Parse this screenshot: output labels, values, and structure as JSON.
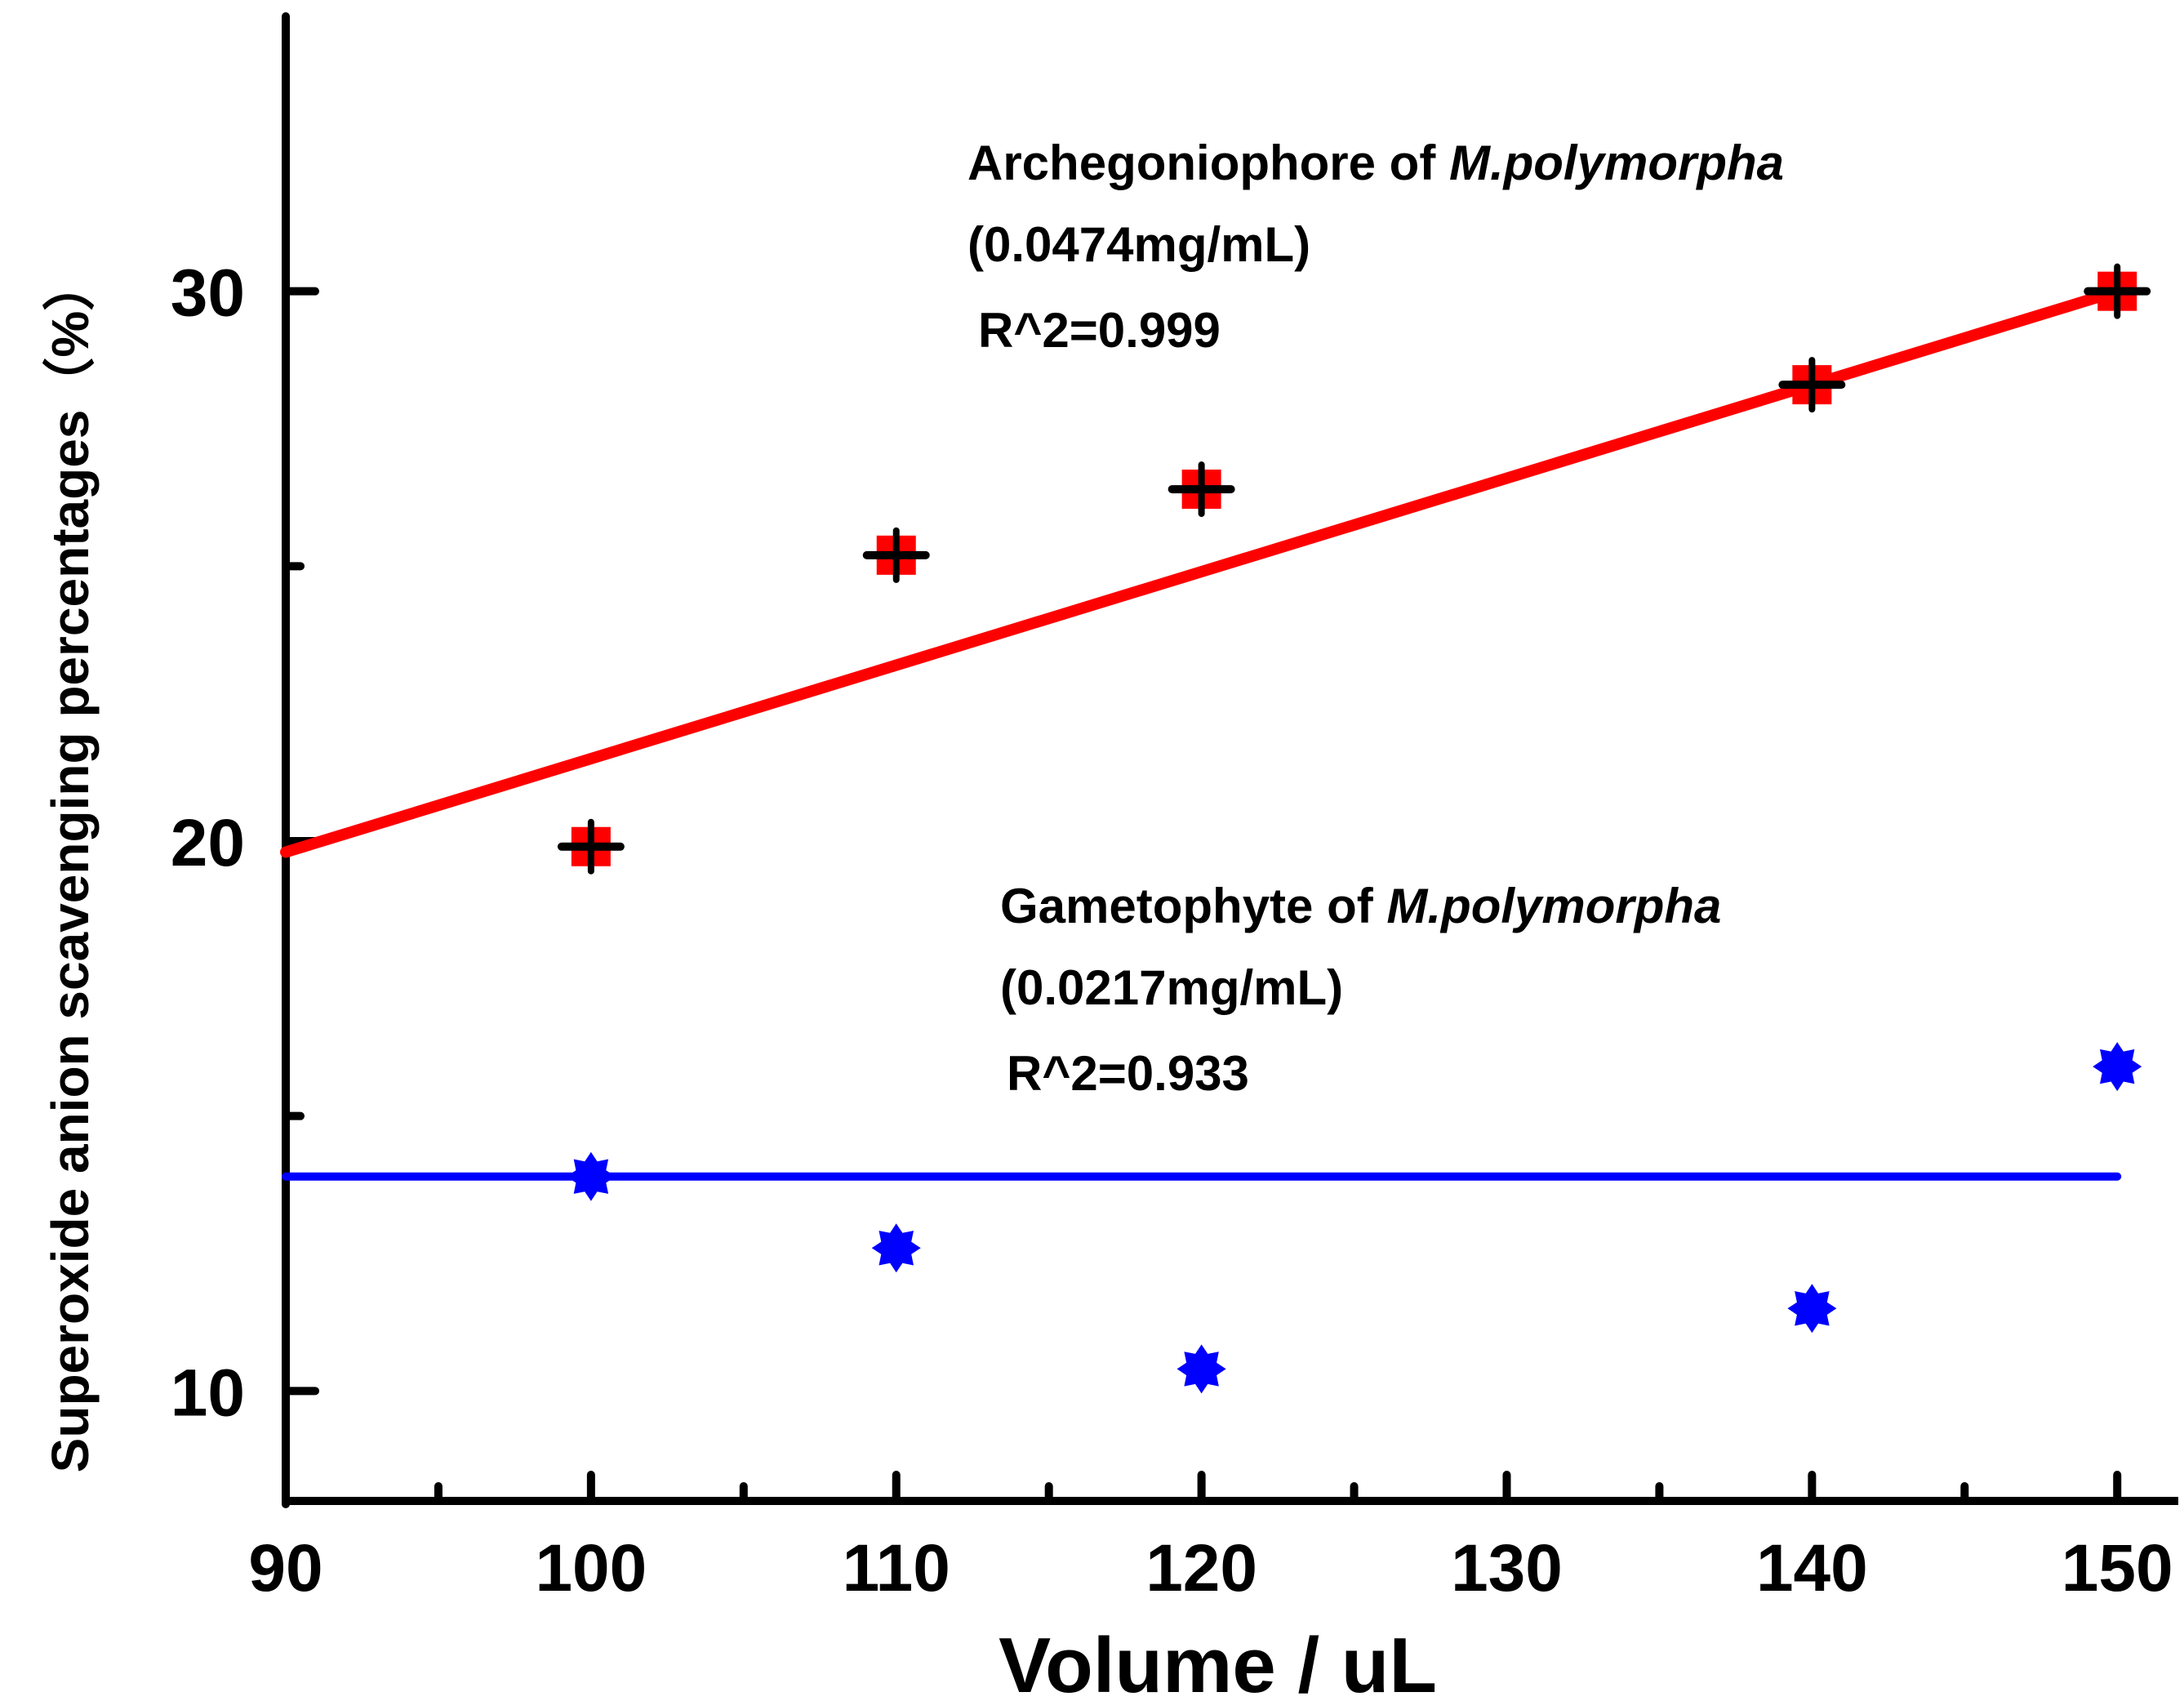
{
  "chart_data": {
    "type": "scatter",
    "title": "",
    "xlabel": "Volume / uL",
    "ylabel": "Superoxide anion scavenging percentages（%）",
    "xlim": [
      90,
      152
    ],
    "ylim": [
      8,
      35
    ],
    "xticks": [
      "90",
      "100",
      "110",
      "120",
      "130",
      "140",
      "150"
    ],
    "yticks": [
      "10",
      "20",
      "30"
    ],
    "series": [
      {
        "name": "Archegoniophore of M.polymorpha",
        "marker": "square-with-cross",
        "color": "#ff0000",
        "x": [
          100,
          110,
          120,
          140,
          150
        ],
        "values": [
          19.9,
          25.2,
          26.4,
          28.3,
          30.0
        ],
        "fit": {
          "x": [
            90,
            150
          ],
          "y": [
            19.8,
            30.0
          ]
        },
        "annotation": {
          "line1_prefix": "Archegoniophore of ",
          "line1_species": "M.polymorpha",
          "line2": "(0.0474mg/mL)",
          "line3": "R^2=0.999"
        }
      },
      {
        "name": "Gametophyte of M.polymorpha",
        "marker": "star",
        "color": "#0000ff",
        "x": [
          100,
          110,
          120,
          140,
          150
        ],
        "values": [
          13.9,
          12.6,
          10.4,
          11.5,
          15.9
        ],
        "fit": {
          "x": [
            90,
            150
          ],
          "y": [
            13.9,
            13.9
          ]
        },
        "annotation": {
          "line1_prefix": "Gametophyte of ",
          "line1_species": "M.polymorpha",
          "line2": "(0.0217mg/mL)",
          "line3": "R^2=0.933"
        }
      }
    ]
  }
}
